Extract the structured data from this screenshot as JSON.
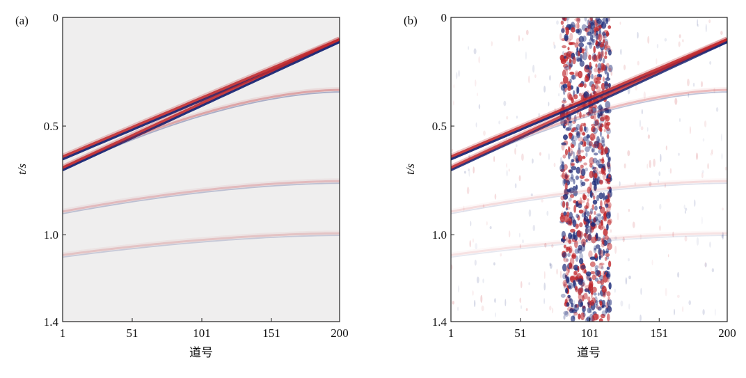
{
  "chart_data": [
    {
      "type": "heatmap",
      "panel_label": "(a)",
      "xlabel": "道号",
      "ylabel": "t/s",
      "xlim": [
        1,
        200
      ],
      "ylim": [
        0,
        1.4
      ],
      "y_inverted": true,
      "xticks": [
        "1",
        "51",
        "101",
        "151",
        "200"
      ],
      "yticks": [
        "0",
        "0.5",
        "1.0",
        "1.4"
      ],
      "colors": {
        "positive": "#c0282d",
        "negative": "#1b2a78",
        "background": "#efeeee"
      },
      "events": [
        {
          "kind": "linear",
          "t_at_trace1": 0.65,
          "t_at_trace200": 0.11,
          "strength": 1.0
        },
        {
          "kind": "linear",
          "t_at_trace1": 0.7,
          "t_at_trace200": 0.11,
          "strength": 1.0
        },
        {
          "kind": "curved",
          "t_at_trace1": 0.7,
          "t_at_trace200": 0.34,
          "strength": 0.35
        },
        {
          "kind": "curved",
          "t_at_trace1": 0.9,
          "t_at_trace200": 0.76,
          "strength": 0.25
        },
        {
          "kind": "curved",
          "t_at_trace1": 1.1,
          "t_at_trace200": 1.0,
          "strength": 0.2
        }
      ],
      "noise_band": null
    },
    {
      "type": "heatmap",
      "panel_label": "(b)",
      "xlabel": "道号",
      "ylabel": "t/s",
      "xlim": [
        1,
        200
      ],
      "ylim": [
        0,
        1.4
      ],
      "y_inverted": true,
      "xticks": [
        "1",
        "51",
        "101",
        "151",
        "200"
      ],
      "yticks": [
        "0",
        "0.5",
        "1.0",
        "1.4"
      ],
      "colors": {
        "positive": "#c0282d",
        "negative": "#1b2a78",
        "background": "#ffffff"
      },
      "events": [
        {
          "kind": "linear",
          "t_at_trace1": 0.65,
          "t_at_trace200": 0.11,
          "strength": 1.0
        },
        {
          "kind": "linear",
          "t_at_trace1": 0.7,
          "t_at_trace200": 0.11,
          "strength": 0.9
        },
        {
          "kind": "curved",
          "t_at_trace1": 0.7,
          "t_at_trace200": 0.34,
          "strength": 0.3
        },
        {
          "kind": "curved",
          "t_at_trace1": 0.9,
          "t_at_trace200": 0.76,
          "strength": 0.15
        },
        {
          "kind": "curved",
          "t_at_trace1": 1.1,
          "t_at_trace200": 1.0,
          "strength": 0.12
        }
      ],
      "noise_band": {
        "trace_start": 81,
        "trace_end": 116,
        "center_trace": 101
      }
    }
  ]
}
